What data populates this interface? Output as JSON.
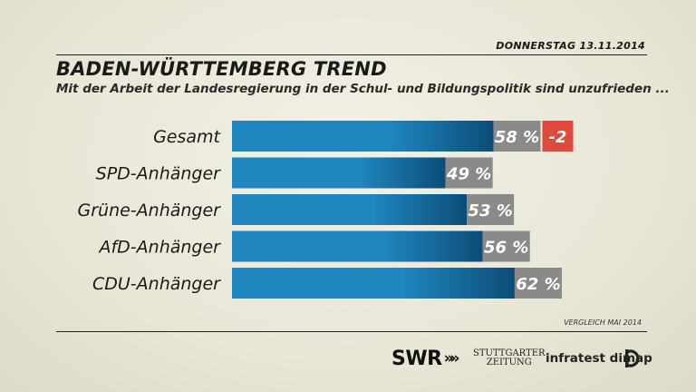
{
  "header": {
    "date": "DONNERSTAG  13.11.2014",
    "title": "BADEN-WÜRTTEMBERG TREND",
    "subtitle": "Mit der Arbeit der Landesregierung in der Schul- und Bildungspolitik sind unzufrieden ..."
  },
  "footnote": "VERGLEICH MAI 2014",
  "logos": {
    "swr": "SWR",
    "swr_arrows": "»»",
    "stz_line1": "STUTTGARTER",
    "stz_line2": "ZEITUNG",
    "infratest": "infratest dimap"
  },
  "colors": {
    "bar": "#1f86bf",
    "bar_dark": "#0c4d78",
    "label_box": "#8a8a8a",
    "change_box": "#e1493c"
  },
  "chart_data": {
    "type": "bar",
    "orientation": "horizontal",
    "categories": [
      "Gesamt",
      "SPD-Anhänger",
      "Grüne-Anhänger",
      "AfD-Anhänger",
      "CDU-Anhänger"
    ],
    "values": [
      58,
      49,
      53,
      56,
      62
    ],
    "value_labels": [
      "58 %",
      "49 %",
      "53 %",
      "56 %",
      "62 %"
    ],
    "changes": [
      "-2",
      "",
      "",
      "",
      ""
    ],
    "unit": "%"
  }
}
